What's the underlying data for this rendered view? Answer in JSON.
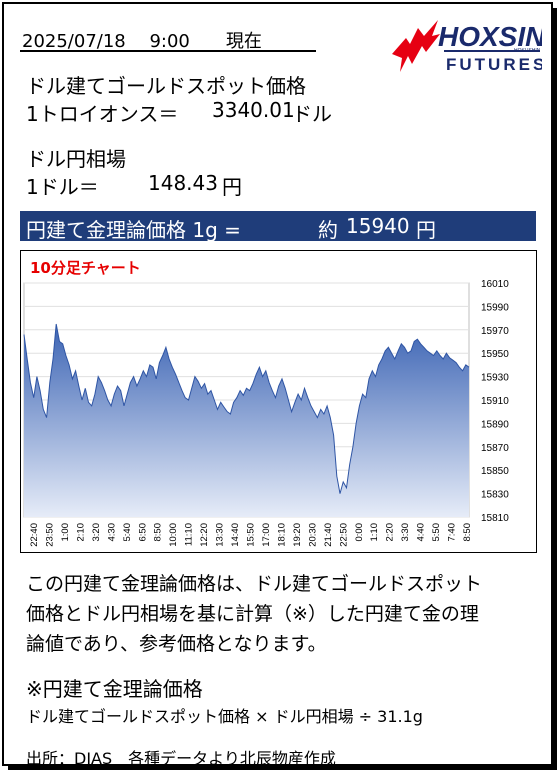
{
  "header": {
    "datetime": "2025/07/18　 9:00　　現在",
    "logo_main": "HOXSIN",
    "logo_sub": "FUTURES",
    "logo_tag": "HOKUSHIN"
  },
  "gold_spot": {
    "label": "ドル建てゴールドスポット価格",
    "unit_label": "1トロイオンス＝",
    "value": "3340.01",
    "currency": "ドル"
  },
  "fx": {
    "label": "ドル円相場",
    "unit_label": "1ドル＝",
    "value": "148.43",
    "currency": "円"
  },
  "banner": {
    "label": "円建て金理論価格 1g =",
    "approx": "約",
    "value": "15940",
    "currency": "円"
  },
  "chart_title": "10分足チャート",
  "chart_data": {
    "type": "area",
    "title": "10分足チャート",
    "ylim": [
      15810,
      16010
    ],
    "yticks": [
      15810,
      15830,
      15850,
      15870,
      15890,
      15910,
      15930,
      15950,
      15970,
      15990,
      16010
    ],
    "xlabels": [
      "22:40",
      "23:50",
      "1:00",
      "2:10",
      "3:20",
      "4:30",
      "5:40",
      "6:50",
      "8:50",
      "10:00",
      "11:10",
      "12:20",
      "13:30",
      "14:40",
      "15:50",
      "17:00",
      "18:10",
      "19:20",
      "20:30",
      "21:40",
      "22:50",
      "0:00",
      "1:10",
      "2:20",
      "3:30",
      "4:40",
      "5:50",
      "7:40",
      "8:50"
    ],
    "values": [
      15966,
      15945,
      15925,
      15912,
      15930,
      15918,
      15902,
      15895,
      15925,
      15945,
      15975,
      15960,
      15958,
      15948,
      15940,
      15928,
      15935,
      15922,
      15910,
      15920,
      15908,
      15905,
      15915,
      15930,
      15925,
      15918,
      15910,
      15905,
      15915,
      15922,
      15918,
      15905,
      15915,
      15925,
      15930,
      15922,
      15928,
      15935,
      15930,
      15940,
      15938,
      15928,
      15942,
      15948,
      15955,
      15945,
      15938,
      15932,
      15925,
      15918,
      15912,
      15910,
      15920,
      15930,
      15926,
      15920,
      15924,
      15915,
      15918,
      15910,
      15902,
      15908,
      15904,
      15900,
      15898,
      15908,
      15912,
      15918,
      15914,
      15920,
      15918,
      15924,
      15932,
      15938,
      15930,
      15935,
      15925,
      15918,
      15912,
      15922,
      15928,
      15920,
      15910,
      15900,
      15908,
      15915,
      15910,
      15920,
      15912,
      15905,
      15900,
      15895,
      15902,
      15898,
      15905,
      15895,
      15880,
      15845,
      15830,
      15840,
      15835,
      15855,
      15870,
      15890,
      15905,
      15915,
      15912,
      15928,
      15935,
      15930,
      15940,
      15945,
      15952,
      15955,
      15950,
      15945,
      15952,
      15958,
      15955,
      15950,
      15952,
      15960,
      15962,
      15958,
      15955,
      15952,
      15950,
      15948,
      15952,
      15948,
      15945,
      15950,
      15946,
      15944,
      15942,
      15938,
      15935,
      15940,
      15938
    ]
  },
  "description": {
    "lines": [
      "この円建て金理論価格は、ドル建てゴールドスポット",
      "価格とドル円相場を基に計算（※）した円建て金の理",
      "論値であり、参考価格となります。"
    ]
  },
  "note": {
    "title": "※円建て金理論価格",
    "formula": "ドル建てゴールドスポット価格 × ドル円相場 ÷ 31.1g"
  },
  "source": "出所：DIAS　各種データより北辰物産作成",
  "colors": {
    "banner": "#1f3d7a",
    "chart_fill_top": "#3c64b4",
    "chart_fill_bottom": "#e6ecf8",
    "chart_title": "#e60000",
    "logo_red": "#e60012",
    "logo_navy": "#1a2a6c"
  }
}
